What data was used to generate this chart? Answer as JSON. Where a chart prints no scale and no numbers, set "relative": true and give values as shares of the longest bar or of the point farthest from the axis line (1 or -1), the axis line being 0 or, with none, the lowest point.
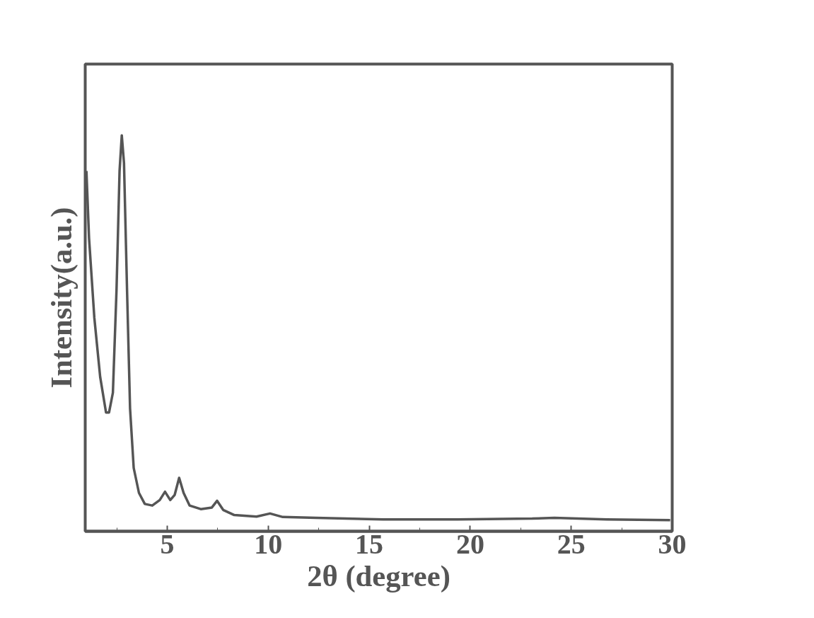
{
  "chart_data": {
    "type": "line",
    "xlabel": "2θ (degree)",
    "ylabel": "Intensity(a.u.)",
    "relative": true,
    "tick_labels": "x",
    "xlim": [
      0.94,
      30
    ],
    "xticks": [
      5,
      10,
      15,
      20,
      25,
      30
    ],
    "series": [
      {
        "color": "#555555",
        "x": [
          1.0,
          1.13,
          1.39,
          1.68,
          1.97,
          2.12,
          2.31,
          2.49,
          2.64,
          2.75,
          2.86,
          3.01,
          3.16,
          3.34,
          3.6,
          3.89,
          4.26,
          4.63,
          4.89,
          5.15,
          5.37,
          5.59,
          5.81,
          6.11,
          6.66,
          7.21,
          7.47,
          7.77,
          8.32,
          9.42,
          10.09,
          10.72,
          12.37,
          15.69,
          19.38,
          23.07,
          24.17,
          26.75,
          29.9
        ],
        "values": [
          0.91,
          0.74,
          0.54,
          0.39,
          0.3,
          0.3,
          0.35,
          0.61,
          0.91,
          1.0,
          0.93,
          0.61,
          0.31,
          0.16,
          0.097,
          0.069,
          0.065,
          0.079,
          0.1,
          0.079,
          0.092,
          0.135,
          0.097,
          0.065,
          0.056,
          0.06,
          0.077,
          0.054,
          0.041,
          0.037,
          0.045,
          0.036,
          0.034,
          0.03,
          0.03,
          0.032,
          0.034,
          0.03,
          0.028
        ]
      }
    ]
  }
}
